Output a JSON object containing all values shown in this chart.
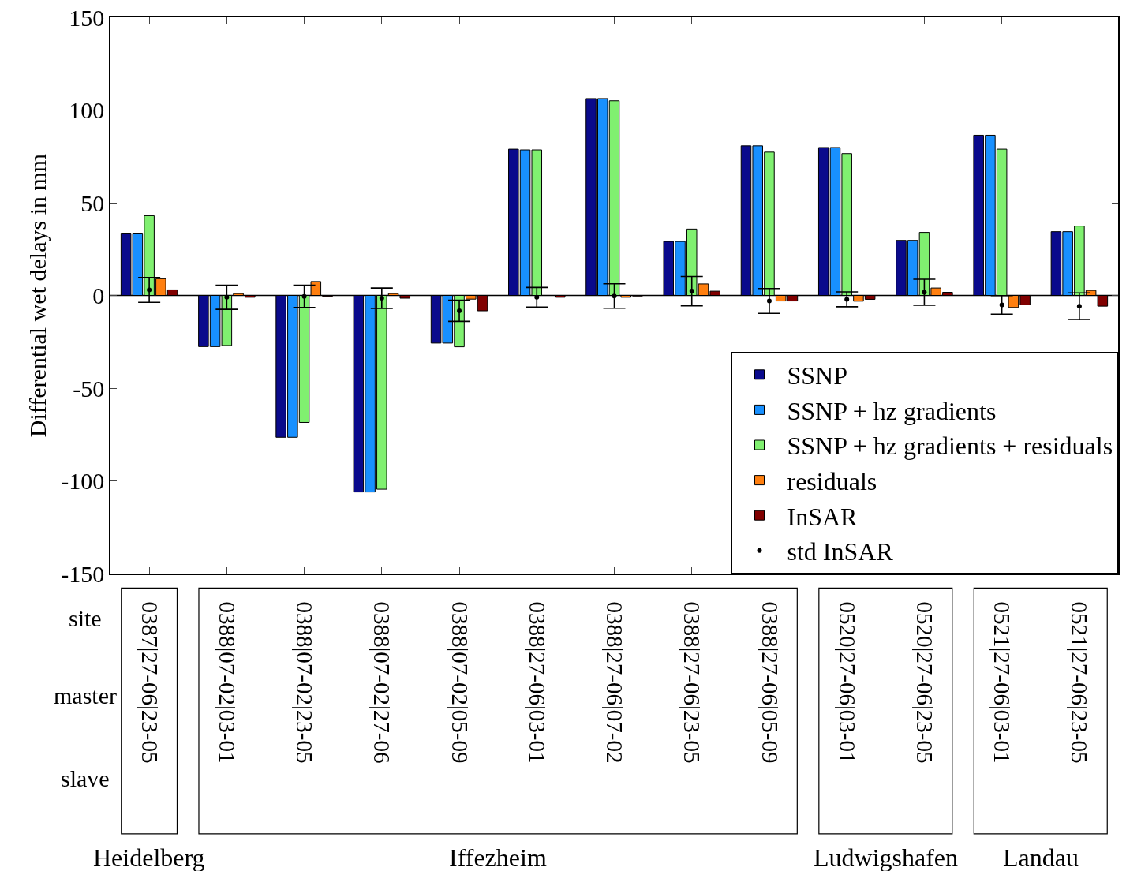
{
  "chart_data": {
    "type": "bar",
    "ylabel": "Differential wet delays in mm",
    "categories": [
      "0387|27-06|23-05",
      "0388|07-02|03-01",
      "0388|07-02|23-05",
      "0388|07-02|27-06",
      "0388|07-02|05-09",
      "0388|27-06|03-01",
      "0388|27-06|07-02",
      "0388|27-06|23-05",
      "0388|27-06|05-09",
      "0520|27-06|03-01",
      "0520|27-06|23-05",
      "0521|27-06|03-01",
      "0521|27-06|23-05"
    ],
    "series": [
      {
        "name": "SSNP",
        "color": "#0a0a8c",
        "values": [
          33.6,
          -27.6,
          -76.5,
          -106,
          -25.7,
          78.9,
          106.2,
          29.1,
          80.7,
          79.8,
          29.7,
          86.4,
          34.4
        ]
      },
      {
        "name": "SSNP + hz gradients",
        "color": "#1890ff",
        "values": [
          33.6,
          -27.6,
          -76.5,
          -106,
          -25.7,
          78.5,
          106.2,
          29.1,
          80.7,
          79.8,
          29.7,
          86.4,
          34.4
        ]
      },
      {
        "name": "SSNP + hz gradients + residuals",
        "color": "#80f070",
        "values": [
          43,
          -27,
          -68.5,
          -104.5,
          -27.7,
          78.5,
          105,
          35.8,
          77.3,
          76.5,
          34,
          78.9,
          37.4
        ]
      },
      {
        "name": "residuals",
        "color": "#ff7f0f",
        "values": [
          9,
          1,
          7.5,
          1,
          -2,
          null,
          -1,
          6.2,
          -3,
          -3.1,
          4,
          -6.5,
          2.7
        ]
      },
      {
        "name": "InSAR",
        "color": "#800000",
        "values": [
          3,
          -1,
          -0.5,
          -1.5,
          -8.3,
          -1,
          -0.3,
          2.3,
          -3,
          -2.1,
          1.7,
          -5.1,
          -5.8
        ]
      },
      {
        "name": "std InSAR",
        "type": "scatter",
        "marker": "circle",
        "color": "#000000",
        "values": [
          3,
          -1,
          -0.5,
          -1.5,
          -8.3,
          -1,
          -0.3,
          2.3,
          -3,
          -2.1,
          1.7,
          -5.1,
          -5.8
        ],
        "errors": [
          6.7,
          6.5,
          6,
          5.5,
          5.7,
          5.3,
          6.6,
          7.9,
          6.7,
          4,
          7,
          5,
          7.2
        ]
      }
    ],
    "ylim": [
      -150,
      150
    ],
    "yticks": [
      -150,
      -100,
      -50,
      0,
      50,
      100,
      150
    ],
    "grid": false,
    "legend": "bottom right",
    "ref_lines": [
      {
        "axis": "y",
        "value": 0,
        "color": "#000000"
      }
    ],
    "annotations": [
      "site",
      "master",
      "slave",
      "Heidelberg",
      "Iffezheim",
      "Ludwigshafen",
      "Landau"
    ]
  }
}
